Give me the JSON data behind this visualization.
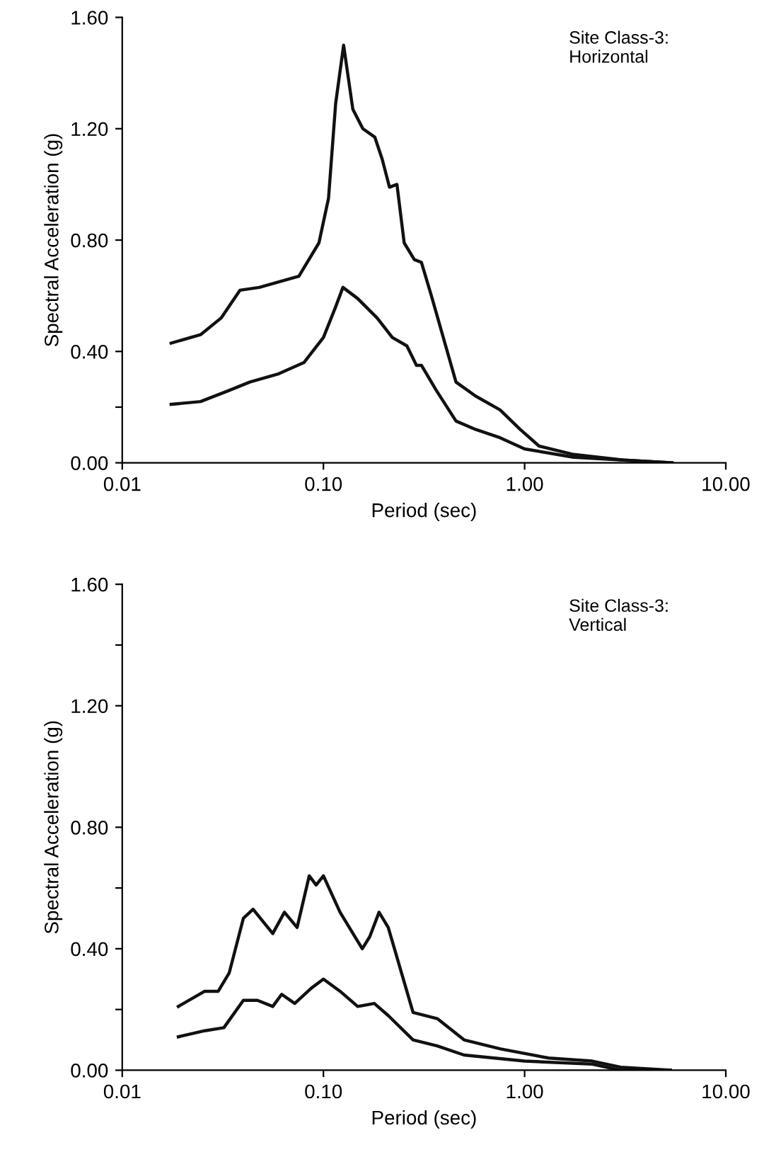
{
  "chart_data": [
    {
      "type": "line",
      "xlabel": "Period (sec)",
      "ylabel": "Spectral Acceleration (g)",
      "annotations": [
        "Site Class-3:\nHorizontal"
      ],
      "log": "x",
      "xlim": [
        0.01,
        10
      ],
      "xticks": [
        {
          "value": 0.01,
          "label": "0.01"
        },
        {
          "value": 0.1,
          "label": "0.10"
        },
        {
          "value": 1,
          "label": "1.00"
        },
        {
          "value": 10,
          "label": "10.00"
        }
      ],
      "ylim": [
        0,
        1.6
      ],
      "yticks": [
        {
          "value": 0,
          "label": "0.00"
        },
        {
          "value": 0.2,
          "label": null
        },
        {
          "value": 0.4,
          "label": "0.40"
        },
        {
          "value": 0.8,
          "label": "0.80"
        },
        {
          "value": 1.2,
          "label": "1.20"
        },
        {
          "value": 1.6,
          "label": "1.60"
        }
      ],
      "grid": false,
      "line_style": "solid",
      "marker": "none",
      "series": [
        {
          "color": "#111111",
          "x": [
            0.0175,
            0.0245,
            0.031,
            0.0385,
            0.048,
            0.0755,
            0.095,
            0.106,
            0.115,
            0.126,
            0.14,
            0.157,
            0.18,
            0.196,
            0.213,
            0.232,
            0.252,
            0.283,
            0.307,
            0.344,
            0.456,
            0.57,
            0.755,
            0.95,
            1.18,
            1.75,
            3.1,
            5.4
          ],
          "values": [
            0.43,
            0.46,
            0.52,
            0.62,
            0.63,
            0.67,
            0.79,
            0.95,
            1.29,
            1.5,
            1.27,
            1.2,
            1.17,
            1.09,
            0.99,
            1.0,
            0.79,
            0.73,
            0.72,
            0.6,
            0.29,
            0.24,
            0.19,
            0.12,
            0.06,
            0.03,
            0.01,
            0.0
          ]
        },
        {
          "color": "#111111",
          "x": [
            0.0175,
            0.0245,
            0.034,
            0.043,
            0.06,
            0.08,
            0.1,
            0.115,
            0.125,
            0.148,
            0.185,
            0.22,
            0.26,
            0.29,
            0.307,
            0.364,
            0.456,
            0.57,
            0.755,
            1.0,
            1.75,
            3.1,
            5.4
          ],
          "values": [
            0.21,
            0.22,
            0.26,
            0.29,
            0.32,
            0.36,
            0.45,
            0.56,
            0.63,
            0.59,
            0.52,
            0.45,
            0.42,
            0.35,
            0.35,
            0.26,
            0.15,
            0.12,
            0.09,
            0.05,
            0.02,
            0.01,
            0.0
          ]
        }
      ]
    },
    {
      "type": "line",
      "xlabel": "Period (sec)",
      "ylabel": "Spectral Acceleration (g)",
      "annotations": [
        "Site Class-3:\nVertical"
      ],
      "log": "x",
      "xlim": [
        0.01,
        10
      ],
      "xticks": [
        {
          "value": 0.01,
          "label": "0.01"
        },
        {
          "value": 0.1,
          "label": "0.10"
        },
        {
          "value": 1,
          "label": "1.00"
        },
        {
          "value": 10,
          "label": "10.00"
        }
      ],
      "ylim": [
        0,
        1.6
      ],
      "yticks": [
        {
          "value": 0,
          "label": "0.00"
        },
        {
          "value": 0.2,
          "label": null
        },
        {
          "value": 0.4,
          "label": "0.40"
        },
        {
          "value": 0.6,
          "label": null
        },
        {
          "value": 0.8,
          "label": "0.80"
        },
        {
          "value": 1.2,
          "label": "1.20"
        },
        {
          "value": 1.4,
          "label": null
        },
        {
          "value": 1.6,
          "label": "1.60"
        }
      ],
      "grid": false,
      "line_style": "solid",
      "marker": "none",
      "series": [
        {
          "color": "#111111",
          "x": [
            0.019,
            0.0257,
            0.03,
            0.034,
            0.04,
            0.0447,
            0.056,
            0.064,
            0.074,
            0.085,
            0.092,
            0.1,
            0.121,
            0.156,
            0.17,
            0.189,
            0.21,
            0.279,
            0.368,
            0.5,
            0.76,
            1.32,
            2.17,
            3.0,
            5.3
          ],
          "values": [
            0.21,
            0.26,
            0.26,
            0.32,
            0.5,
            0.53,
            0.45,
            0.52,
            0.47,
            0.64,
            0.61,
            0.64,
            0.52,
            0.4,
            0.44,
            0.52,
            0.47,
            0.19,
            0.17,
            0.1,
            0.07,
            0.04,
            0.03,
            0.01,
            0.0
          ]
        },
        {
          "color": "#111111",
          "x": [
            0.019,
            0.0257,
            0.032,
            0.04,
            0.047,
            0.056,
            0.062,
            0.072,
            0.087,
            0.1,
            0.121,
            0.148,
            0.179,
            0.21,
            0.279,
            0.368,
            0.5,
            1.0,
            2.17,
            3.0,
            5.3
          ],
          "values": [
            0.11,
            0.13,
            0.14,
            0.23,
            0.23,
            0.21,
            0.25,
            0.22,
            0.27,
            0.3,
            0.26,
            0.21,
            0.22,
            0.18,
            0.1,
            0.08,
            0.05,
            0.03,
            0.02,
            0.0,
            0.0
          ]
        }
      ]
    }
  ]
}
